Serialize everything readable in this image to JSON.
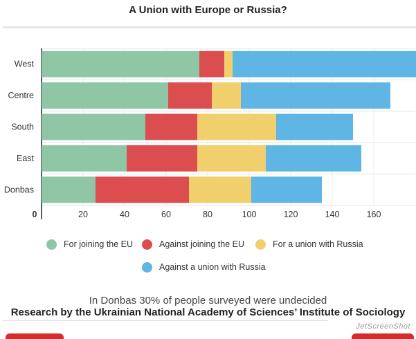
{
  "chart_data": {
    "type": "bar",
    "orientation": "horizontal",
    "stacked": true,
    "title": "A Union with Europe or Russia?",
    "categories": [
      "West",
      "Centre",
      "South",
      "East",
      "Donbas"
    ],
    "series": [
      {
        "name": "For joining the EU",
        "color": "#8fc6a6",
        "values": [
          76,
          61,
          50,
          41,
          26
        ]
      },
      {
        "name": "Against joining the EU",
        "color": "#dc4d4f",
        "values": [
          12,
          21,
          25,
          34,
          45
        ]
      },
      {
        "name": "For a union with Russia",
        "color": "#f0cf6c",
        "values": [
          4,
          14,
          38,
          33,
          30
        ]
      },
      {
        "name": "Against a union with Russia",
        "color": "#5fb5e4",
        "values": [
          89,
          72,
          37,
          46,
          34
        ]
      }
    ],
    "xlim": [
      0,
      180
    ],
    "x_ticks": [
      "0",
      "20",
      "40",
      "60",
      "80",
      "100",
      "120",
      "140",
      "160"
    ],
    "x_tick_values": [
      0,
      20,
      40,
      60,
      80,
      100,
      120,
      140,
      160
    ],
    "grid": true,
    "legend_position": "bottom"
  },
  "note": "In Donbas 30% of people surveyed were undecided",
  "source": "Research by the Ukrainian National Academy of Sciences’ Institute of Sociology",
  "watermark": "JetScreenShot"
}
